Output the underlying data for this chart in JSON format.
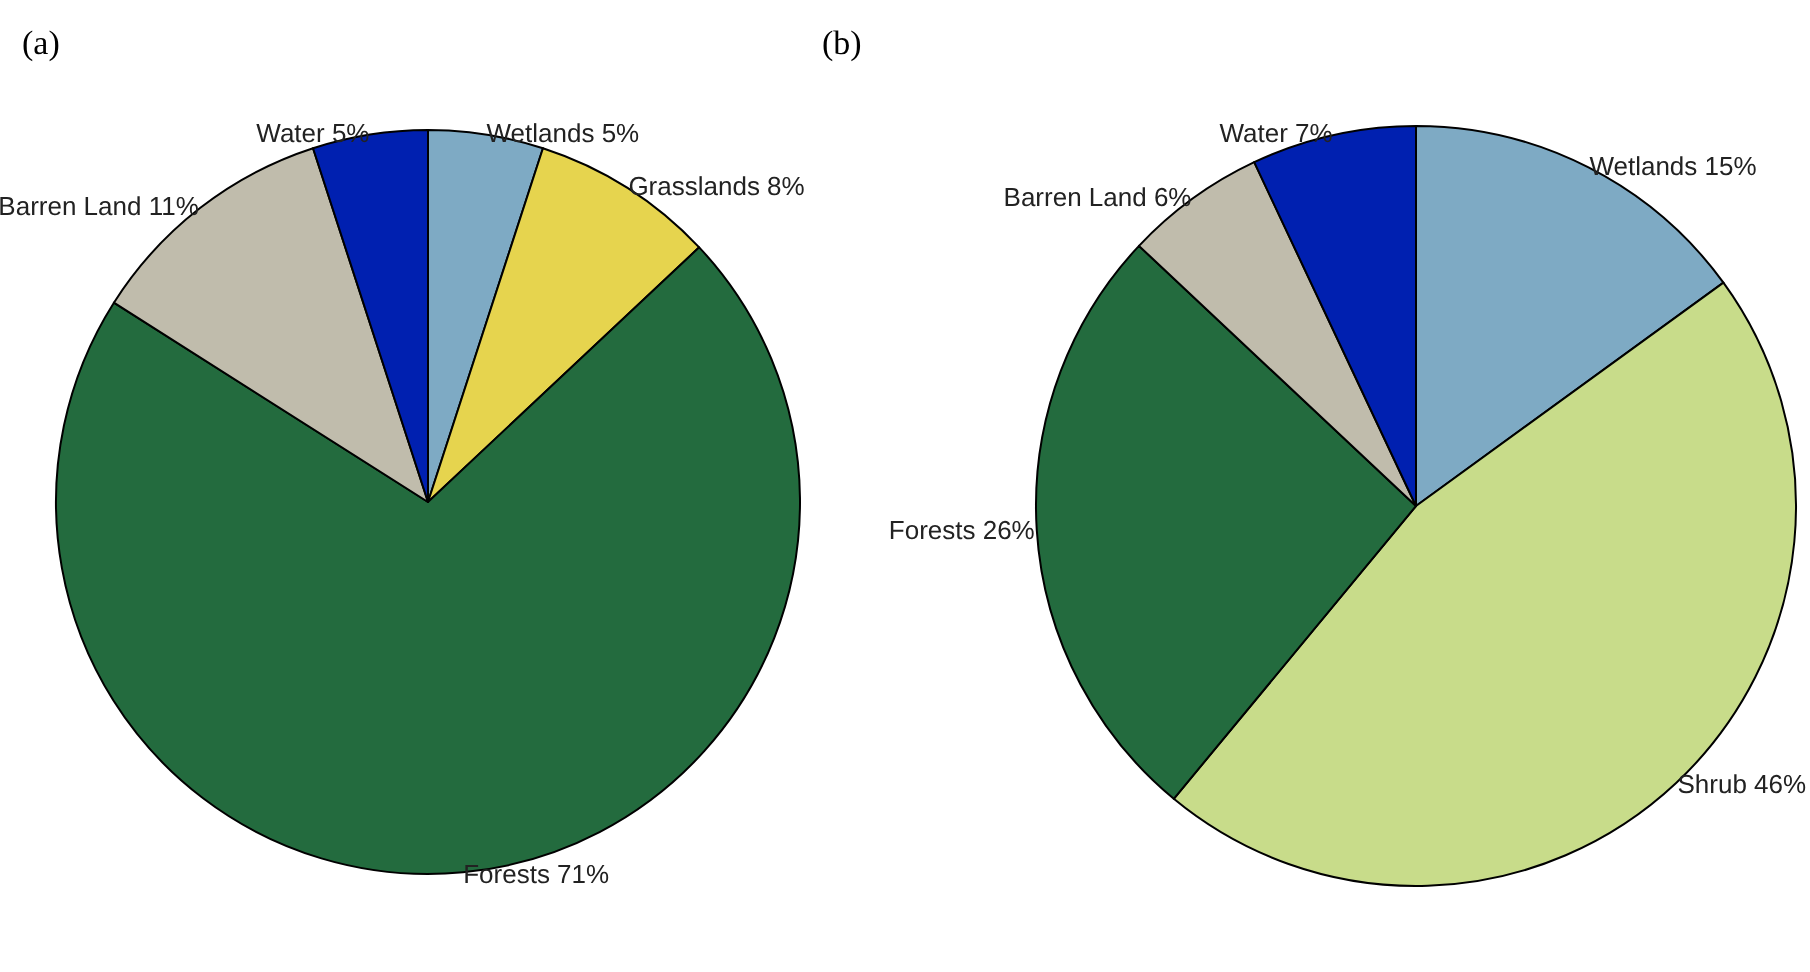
{
  "chart_data": [
    {
      "type": "pie",
      "title": "(a)",
      "categories": [
        "Wetlands",
        "Grasslands",
        "Forests",
        "Barren Land",
        "Water"
      ],
      "values": [
        5,
        8,
        71,
        11,
        5
      ],
      "colors": [
        "#7eaac4",
        "#e6d44e",
        "#236b3e",
        "#c0bcac",
        "#0020b0"
      ],
      "value_labels": [
        "5%",
        "8%",
        "71%",
        "11%",
        "5%"
      ]
    },
    {
      "type": "pie",
      "title": "(b)",
      "categories": [
        "Wetlands",
        "Shrub",
        "Forests",
        "Barren Land",
        "Water"
      ],
      "values": [
        15,
        46,
        26,
        6,
        7
      ],
      "colors": [
        "#7eaac4",
        "#c8dc8a",
        "#236b3e",
        "#c0bcac",
        "#0020b0"
      ],
      "value_labels": [
        "15%",
        "46%",
        "26%",
        "6%",
        "7%"
      ]
    }
  ]
}
